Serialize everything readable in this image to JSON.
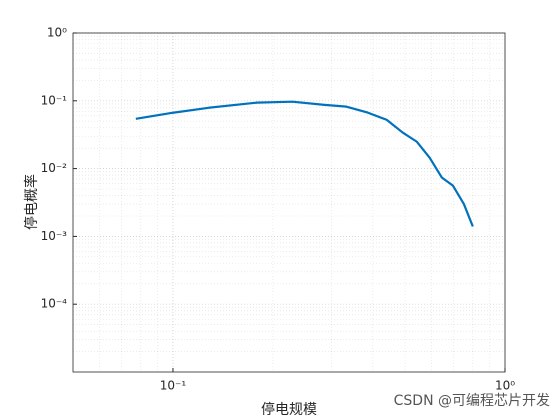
{
  "chart_data": {
    "type": "line",
    "xlabel": "停电规模",
    "ylabel": "停电概率",
    "x": [
      0.0773,
      0.1,
      0.128,
      0.179,
      0.229,
      0.286,
      0.333,
      0.386,
      0.44,
      0.492,
      0.542,
      0.593,
      0.645,
      0.697,
      0.752,
      0.8
    ],
    "series": [
      {
        "name": "停电概率",
        "color": "#0072bd",
        "values": [
          0.0543,
          0.0667,
          0.0789,
          0.094,
          0.097,
          0.087,
          0.082,
          0.067,
          0.0525,
          0.034,
          0.025,
          0.0145,
          0.0074,
          0.0056,
          0.003,
          0.0014
        ]
      }
    ],
    "xlim": [
      0.05,
      1
    ],
    "ylim": [
      1e-05,
      1
    ],
    "xticks": [
      {
        "value": 0.1,
        "label": "10⁻¹"
      },
      {
        "value": 1,
        "label": "10⁰"
      }
    ],
    "yticks": [
      {
        "value": 0.0001,
        "label": "10⁻⁴"
      },
      {
        "value": 0.001,
        "label": "10⁻³"
      },
      {
        "value": 0.01,
        "label": "10⁻²"
      },
      {
        "value": 0.1,
        "label": "10⁻¹"
      },
      {
        "value": 1,
        "label": "10⁰"
      }
    ],
    "xscale": "log",
    "yscale": "log",
    "grid": true,
    "minor_grid": true,
    "watermark": "CSDN @可编程芯片开发"
  }
}
